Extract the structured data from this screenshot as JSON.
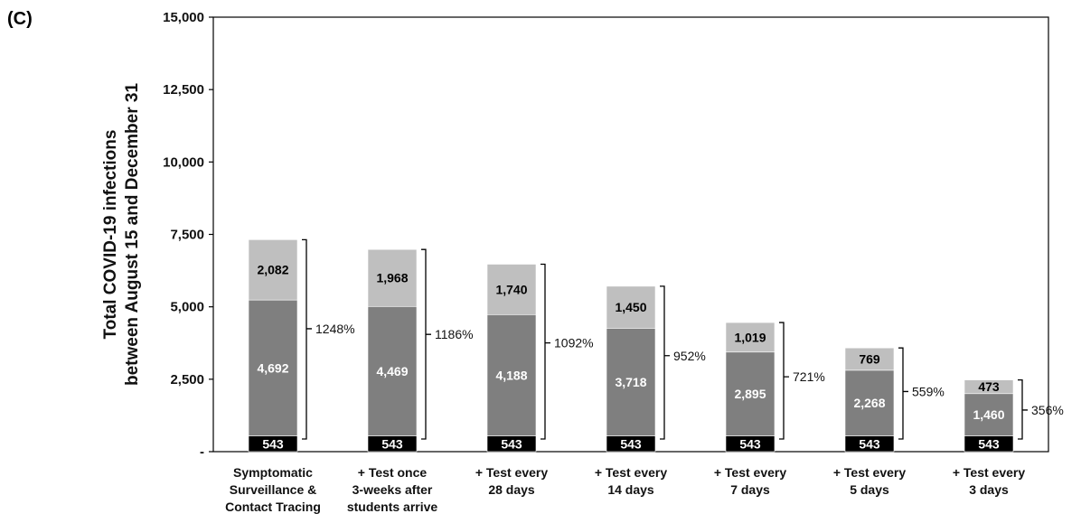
{
  "panel_label": "(C)",
  "chart_data": {
    "type": "bar",
    "stacked": true,
    "ylabel": [
      "Total COVID-19 infections",
      "between August 15 and December 31"
    ],
    "ylim": [
      0,
      15000
    ],
    "yticks": [
      0,
      2500,
      5000,
      7500,
      10000,
      12500,
      15000
    ],
    "ytick_labels": [
      "-",
      "2,500",
      "5,000",
      "7,500",
      "10,000",
      "12,500",
      "15,000"
    ],
    "grid": false,
    "categories": [
      [
        "Symptomatic",
        "Surveillance &",
        "Contact Tracing"
      ],
      [
        "+ Test once",
        "3-weeks after",
        "students arrive"
      ],
      [
        "+ Test every",
        "28 days"
      ],
      [
        "+ Test every",
        "14 days"
      ],
      [
        "+ Test every",
        "7 days"
      ],
      [
        "+ Test every",
        "5 days"
      ],
      [
        "+ Test every",
        "3 days"
      ]
    ],
    "series": [
      {
        "values": [
          543,
          543,
          543,
          543,
          543,
          543,
          543
        ],
        "labels": [
          "543",
          "543",
          "543",
          "543",
          "543",
          "543",
          "543"
        ],
        "color": "#000000",
        "label_color": "#ffffff"
      },
      {
        "values": [
          4692,
          4469,
          4188,
          3718,
          2895,
          2268,
          1460
        ],
        "labels": [
          "4,692",
          "4,469",
          "4,188",
          "3,718",
          "2,895",
          "2,268",
          "1,460"
        ],
        "color": "#7f7f7f",
        "label_color": "#ffffff"
      },
      {
        "values": [
          2082,
          1968,
          1740,
          1450,
          1019,
          769,
          473
        ],
        "labels": [
          "2,082",
          "1,968",
          "1,740",
          "1,450",
          "1,019",
          "769",
          "473"
        ],
        "color": "#bfbfbf",
        "label_color": "#000000"
      }
    ],
    "bracket_labels": [
      "1248%",
      "1186%",
      "1092%",
      "952%",
      "721%",
      "559%",
      "356%"
    ]
  }
}
